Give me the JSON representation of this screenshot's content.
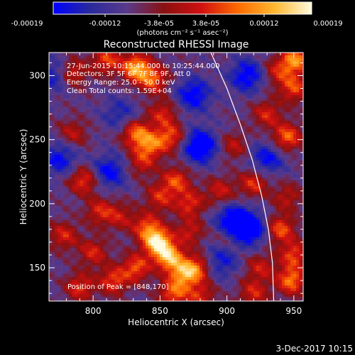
{
  "colorbar": {
    "tick_labels": [
      "-0.00019",
      "-0.00012",
      "-3.8e-05",
      "3.8e-05",
      "0.00012",
      "0.00019"
    ],
    "unit_label": "(photons cm⁻² s⁻¹ asec⁻²)",
    "range": [
      -0.00019,
      0.00019
    ]
  },
  "plot": {
    "title": "Reconstructed RHESSI Image",
    "xlabel": "Heliocentric X (arcsec)",
    "ylabel": "Heliocentric Y (arcsec)",
    "annotations": [
      "27-Jun-2015 10:15:44.000 to 10:25:44.000",
      "Detectors: 3F 5F 6F 7F 8F 9F, Att 0",
      "Energy Range: 25.0 - 50.0 keV",
      "Clean     Total counts: 1.59E+04"
    ],
    "peak_label": "Position of Peak = [848,170]"
  },
  "footer": {
    "timestamp": "3-Dec-2017 10:15"
  },
  "colors": {
    "background": "#000000",
    "foreground": "#ffffff",
    "colormap": [
      "#0000ff",
      "#2a2a9c",
      "#5a3a8a",
      "#8a1010",
      "#d01010",
      "#ff6a00",
      "#ffb830",
      "#fffbe0"
    ]
  },
  "chart_data": {
    "type": "heatmap",
    "title": "Reconstructed RHESSI Image",
    "xlabel": "Heliocentric X (arcsec)",
    "ylabel": "Heliocentric Y (arcsec)",
    "xlim": [
      767,
      957
    ],
    "ylim": [
      124,
      318
    ],
    "xticks": [
      800,
      850,
      900,
      950
    ],
    "yticks": [
      150,
      200,
      250,
      300
    ],
    "peak": [
      848,
      170
    ],
    "limb_curve": [
      [
        888,
        318
      ],
      [
        900,
        290
      ],
      [
        910,
        262
      ],
      [
        919,
        234
      ],
      [
        926,
        206
      ],
      [
        931,
        180
      ],
      [
        934,
        154
      ],
      [
        935,
        124
      ]
    ],
    "color_range": [
      -0.00019,
      0.00019
    ],
    "blobs": [
      {
        "x": 832,
        "y": 306,
        "i": 0.85
      },
      {
        "x": 845,
        "y": 297,
        "i": 0.6
      },
      {
        "x": 810,
        "y": 312,
        "i": 0.55
      },
      {
        "x": 785,
        "y": 302,
        "i": 0.45
      },
      {
        "x": 832,
        "y": 255,
        "i": 0.65
      },
      {
        "x": 843,
        "y": 246,
        "i": 0.6
      },
      {
        "x": 858,
        "y": 252,
        "i": 0.55
      },
      {
        "x": 852,
        "y": 270,
        "i": 0.45
      },
      {
        "x": 836,
        "y": 232,
        "i": 0.4
      },
      {
        "x": 862,
        "y": 218,
        "i": 0.55
      },
      {
        "x": 872,
        "y": 200,
        "i": 0.5
      },
      {
        "x": 850,
        "y": 205,
        "i": 0.45
      },
      {
        "x": 793,
        "y": 218,
        "i": 0.55
      },
      {
        "x": 805,
        "y": 194,
        "i": 0.45
      },
      {
        "x": 820,
        "y": 190,
        "i": 0.35
      },
      {
        "x": 840,
        "y": 182,
        "i": 0.55
      },
      {
        "x": 848,
        "y": 170,
        "i": 1.0
      },
      {
        "x": 857,
        "y": 158,
        "i": 0.85
      },
      {
        "x": 868,
        "y": 145,
        "i": 0.7
      },
      {
        "x": 878,
        "y": 150,
        "i": 0.55
      },
      {
        "x": 832,
        "y": 150,
        "i": 0.6
      },
      {
        "x": 815,
        "y": 140,
        "i": 0.55
      },
      {
        "x": 800,
        "y": 162,
        "i": 0.45
      },
      {
        "x": 778,
        "y": 175,
        "i": 0.45
      },
      {
        "x": 790,
        "y": 135,
        "i": 0.5
      },
      {
        "x": 860,
        "y": 130,
        "i": 0.6
      },
      {
        "x": 880,
        "y": 128,
        "i": 0.45
      },
      {
        "x": 895,
        "y": 210,
        "i": 0.4
      },
      {
        "x": 905,
        "y": 245,
        "i": 0.35
      },
      {
        "x": 900,
        "y": 175,
        "i": 0.3
      },
      {
        "x": 930,
        "y": 270,
        "i": 0.45
      },
      {
        "x": 945,
        "y": 252,
        "i": 0.65
      },
      {
        "x": 950,
        "y": 290,
        "i": 0.55
      },
      {
        "x": 951,
        "y": 312,
        "i": 0.75
      },
      {
        "x": 938,
        "y": 303,
        "i": 0.4
      },
      {
        "x": 920,
        "y": 216,
        "i": 0.5
      },
      {
        "x": 945,
        "y": 205,
        "i": 0.35
      },
      {
        "x": 940,
        "y": 180,
        "i": 0.6
      },
      {
        "x": 950,
        "y": 160,
        "i": 0.55
      },
      {
        "x": 948,
        "y": 140,
        "i": 0.7
      },
      {
        "x": 925,
        "y": 150,
        "i": 0.4
      },
      {
        "x": 920,
        "y": 130,
        "i": 0.45
      },
      {
        "x": 872,
        "y": 178,
        "i": 0.4
      },
      {
        "x": 785,
        "y": 255,
        "i": 0.35
      }
    ],
    "voids": [
      {
        "x": 880,
        "y": 245,
        "i": 0.8
      },
      {
        "x": 875,
        "y": 285,
        "i": 0.6
      },
      {
        "x": 915,
        "y": 300,
        "i": 0.6
      },
      {
        "x": 905,
        "y": 185,
        "i": 0.85
      },
      {
        "x": 918,
        "y": 180,
        "i": 0.6
      },
      {
        "x": 812,
        "y": 225,
        "i": 0.55
      },
      {
        "x": 775,
        "y": 235,
        "i": 0.5
      },
      {
        "x": 930,
        "y": 235,
        "i": 0.5
      },
      {
        "x": 895,
        "y": 155,
        "i": 0.45
      },
      {
        "x": 770,
        "y": 300,
        "i": 0.4
      },
      {
        "x": 820,
        "y": 270,
        "i": 0.35
      }
    ]
  }
}
